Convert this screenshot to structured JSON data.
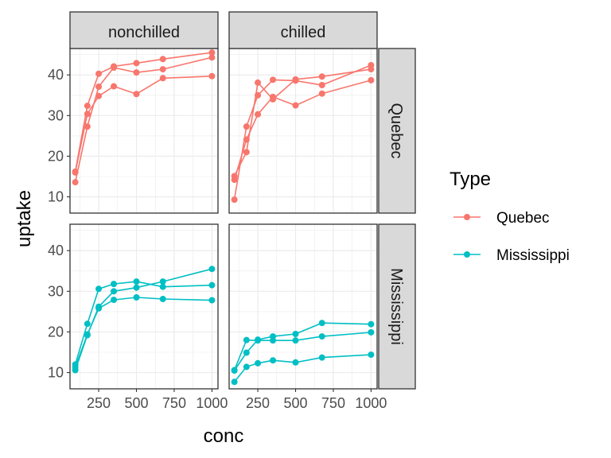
{
  "chart_data": {
    "type": "line",
    "xlabel": "conc",
    "ylabel": "uptake",
    "col_facets": [
      "nonchilled",
      "chilled"
    ],
    "row_facets": [
      "Quebec",
      "Mississippi"
    ],
    "xlim": [
      60,
      1040
    ],
    "ylim": [
      6,
      46.5
    ],
    "x_ticks": [
      250,
      500,
      750,
      1000
    ],
    "x_tick_labels": [
      "250",
      "500",
      "750",
      "1000"
    ],
    "y_ticks": [
      10,
      20,
      30,
      40
    ],
    "y_tick_labels": [
      "10",
      "20",
      "30",
      "40"
    ],
    "grid": true,
    "legend": {
      "title": "Type",
      "position": "right",
      "entries": [
        {
          "label": "Quebec",
          "color": "#F8766D"
        },
        {
          "label": "Mississippi",
          "color": "#00BFC4"
        }
      ]
    },
    "colors": {
      "Quebec": "#F8766D",
      "Mississippi": "#00BFC4"
    },
    "x": [
      95,
      175,
      250,
      350,
      500,
      675,
      1000
    ],
    "panels": [
      {
        "type": "Quebec",
        "treatment": "nonchilled",
        "series": [
          {
            "values": [
              16.0,
              30.4,
              34.8,
              37.2,
              35.3,
              39.2,
              39.7
            ]
          },
          {
            "values": [
              13.6,
              27.3,
              37.1,
              41.8,
              40.6,
              41.4,
              44.3
            ]
          },
          {
            "values": [
              16.2,
              32.4,
              40.3,
              42.1,
              42.9,
              43.9,
              45.5
            ]
          }
        ]
      },
      {
        "type": "Quebec",
        "treatment": "chilled",
        "series": [
          {
            "values": [
              14.2,
              24.1,
              30.3,
              34.6,
              32.5,
              35.4,
              38.7
            ]
          },
          {
            "values": [
              9.3,
              27.3,
              35.0,
              38.8,
              38.6,
              37.5,
              42.4
            ]
          },
          {
            "values": [
              15.1,
              21.0,
              38.1,
              34.0,
              38.9,
              39.6,
              41.4
            ]
          }
        ]
      },
      {
        "type": "Mississippi",
        "treatment": "nonchilled",
        "series": [
          {
            "values": [
              10.6,
              19.2,
              26.2,
              30.0,
              30.9,
              32.4,
              35.5
            ]
          },
          {
            "values": [
              12.0,
              22.0,
              30.6,
              31.8,
              32.4,
              31.1,
              31.5
            ]
          },
          {
            "values": [
              11.3,
              19.4,
              25.8,
              27.9,
              28.5,
              28.1,
              27.8
            ]
          }
        ]
      },
      {
        "type": "Mississippi",
        "treatment": "chilled",
        "series": [
          {
            "values": [
              10.5,
              14.9,
              18.1,
              18.9,
              19.5,
              22.2,
              21.9
            ]
          },
          {
            "values": [
              7.7,
              11.4,
              12.3,
              13.0,
              12.5,
              13.7,
              14.4
            ]
          },
          {
            "values": [
              10.6,
              18.0,
              17.9,
              17.9,
              17.9,
              18.9,
              19.9
            ]
          }
        ]
      }
    ]
  }
}
